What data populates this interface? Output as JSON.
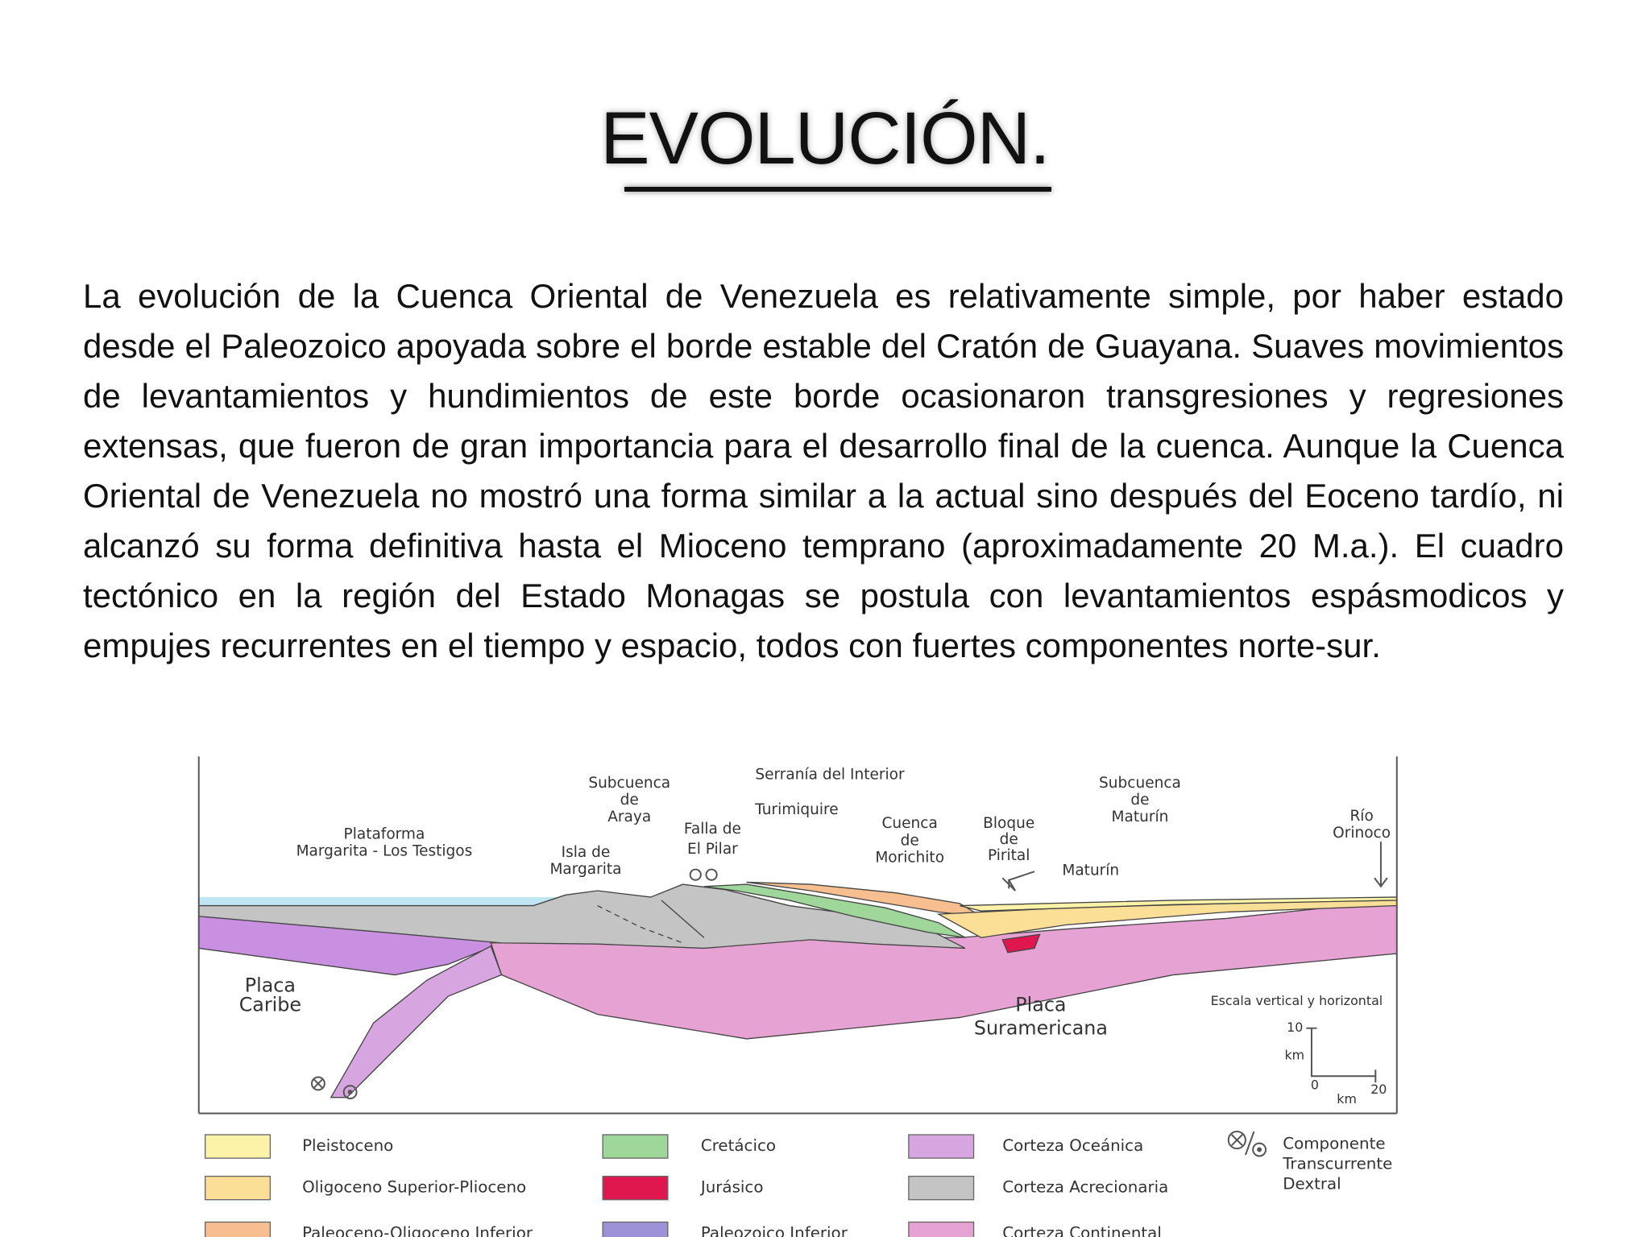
{
  "title": "EVOLUCIÓN.",
  "paragraph": "La evolución de la Cuenca Oriental de Venezuela es relativamente simple, por haber estado desde el Paleozoico apoyada sobre el borde estable del Cratón de Guayana. Suaves movimientos de levantamientos y hundimientos de este borde ocasionaron transgresiones y regresiones extensas, que fueron de gran importancia para el desarrollo final de la cuenca. Aunque la Cuenca Oriental de Venezuela no mostró una forma similar a la actual sino después del Eoceno tardío, ni alcanzó su forma definitiva hasta el Mioceno temprano (aproximadamente 20 M.a.). El cuadro tectónico en la región del Estado Monagas se postula con levantamientos espásmodicos y empujes recurrentes en el tiempo y espacio, todos con fuertes componentes norte-sur.",
  "diagram": {
    "labels": [
      {
        "lines": [
          "Plataforma",
          "Margarita - Los Testigos"
        ]
      },
      {
        "lines": [
          "Isla de",
          "Margarita"
        ]
      },
      {
        "lines": [
          "Subcuenca",
          "de",
          "Araya"
        ]
      },
      {
        "lines": [
          "Falla de",
          "El Pilar"
        ]
      },
      {
        "lines": [
          "Serranía del Interior"
        ]
      },
      {
        "lines": [
          "Turimiquire"
        ]
      },
      {
        "lines": [
          "Cuenca",
          "de",
          "Morichito"
        ]
      },
      {
        "lines": [
          "Bloque",
          "de",
          "Pirital"
        ]
      },
      {
        "lines": [
          "Maturín"
        ]
      },
      {
        "lines": [
          "Subcuenca",
          "de",
          "Maturín"
        ]
      },
      {
        "lines": [
          "Río",
          "Orinoco"
        ]
      },
      {
        "lines": [
          "Placa",
          "Caribe"
        ]
      },
      {
        "lines": [
          "Placa",
          "Suramericana"
        ]
      }
    ],
    "scale": {
      "caption": "Escala vertical y horizontal",
      "top": "10",
      "unit_y": "km",
      "zero": "0",
      "end": "20",
      "unit_x": "km"
    }
  },
  "legend": [
    {
      "label": "Pleistoceno",
      "color": "#fdf3a8"
    },
    {
      "label": "Oligoceno Superior-Plioceno",
      "color": "#fbdf96"
    },
    {
      "label": "Paleoceno-Oligoceno Inferior",
      "color": "#f7bf8f"
    },
    {
      "label": "Cretácico",
      "color": "#9fd69a"
    },
    {
      "label": "Jurásico",
      "color": "#e0174f"
    },
    {
      "label": "Paleozoico Inferior",
      "color": "#9d92d8"
    },
    {
      "label": "Corteza Oceánica",
      "color": "#d7a6e0"
    },
    {
      "label": "Corteza Acrecionaria",
      "color": "#c4c4c4"
    },
    {
      "label": "Corteza Continental",
      "color": "#e6a2d2"
    }
  ],
  "transcurrent": {
    "lines": [
      "Componente",
      "Transcurrente",
      "Dextral"
    ]
  }
}
